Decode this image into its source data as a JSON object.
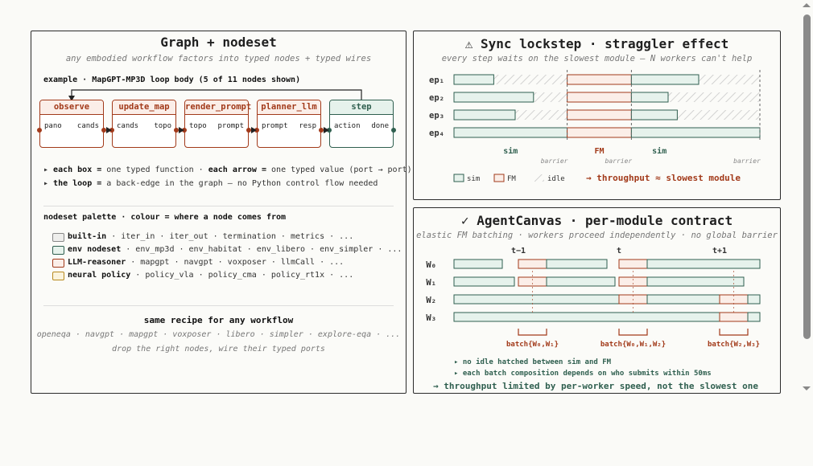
{
  "left": {
    "title": "Graph + nodeset",
    "subtitle": "any embodied workflow factors into typed nodes + typed wires",
    "example_label": "example · MapGPT-MP3D loop body (5 of 11 nodes shown)",
    "nodes": [
      {
        "name": "observe",
        "in": "pano",
        "out": "cands"
      },
      {
        "name": "update_map",
        "in": "cands",
        "out": "topo"
      },
      {
        "name": "render_prompt",
        "in": "topo",
        "out": "prompt"
      },
      {
        "name": "planner_llm",
        "in": "prompt",
        "out": "resp"
      },
      {
        "name": "step",
        "in": "action",
        "out": "done"
      }
    ],
    "bullet1_b1": "each box =",
    "bullet1_t1": "one typed function ·",
    "bullet1_b2": "each arrow =",
    "bullet1_t2": "one typed value (port → port)",
    "bullet2_b": "the loop =",
    "bullet2_t": "a back-edge in the graph — no Python control flow needed",
    "palette_title": "nodeset palette · colour = where a node comes from",
    "palette": [
      {
        "name": "built-in",
        "items": "· iter_in · iter_out · termination · metrics · ...",
        "fill": "#eeeeec",
        "border": "#888888"
      },
      {
        "name": "env nodeset",
        "items": "· env_mp3d · env_habitat · env_libero · env_simpler · ...",
        "fill": "#e6f2ec",
        "border": "#2f5f4f"
      },
      {
        "name": "LLM-reasoner",
        "items": "· mapgpt · navgpt · voxposer · llmCall · ...",
        "fill": "#fbeee8",
        "border": "#a23a1a"
      },
      {
        "name": "neural policy",
        "items": "· policy_vla · policy_cma · policy_rt1x · ...",
        "fill": "#fbf3dc",
        "border": "#b88a20"
      }
    ],
    "recipe_title": "same recipe for any workflow",
    "recipe_list": "openeqa · navgpt · mapgpt · voxposer · libero · simpler · explore-eqa · ...",
    "recipe_foot": "drop the right nodes, wire their typed ports"
  },
  "sync": {
    "title": "⚠ Sync lockstep · straggler effect",
    "subtitle": "every step waits on the slowest module — N workers can't help",
    "rows": [
      "ep₁",
      "ep₂",
      "ep₃",
      "ep₄"
    ],
    "sim1_end": [
      0.13,
      0.26,
      0.2,
      0.37
    ],
    "fm_end": 0.58,
    "sim2_end": [
      0.8,
      0.7,
      0.73,
      1.0
    ],
    "phase_labels": [
      "sim",
      "FM",
      "sim"
    ],
    "barrier_label": "barrier",
    "legend": [
      "sim",
      "FM",
      "idle"
    ],
    "throughput": "→ throughput ≈ slowest module"
  },
  "agent": {
    "title": "✓ AgentCanvas · per-module contract",
    "subtitle": "elastic FM batching · workers proceed independently · no global barrier",
    "ticks": [
      "t−1",
      "t",
      "t+1"
    ],
    "rows": [
      "W₀",
      "W₁",
      "W₂",
      "W₃"
    ],
    "batches": [
      "batch{W₀,W₁}",
      "batch{W₀,W₁,W₂}",
      "batch{W₂,W₃}"
    ],
    "note1": "▸ no idle hatched between sim and FM",
    "note2": "▸ each batch composition depends on who submits within 50ms",
    "throughput": "→ throughput limited by per-worker speed, not the slowest one"
  },
  "colors": {
    "sim_fill": "#e6f2ec",
    "sim_stroke": "#2f5f4f",
    "fm_fill": "#fbeee8",
    "fm_stroke": "#a23a1a",
    "accent": "#a23a1a",
    "green": "#2f5f4f"
  }
}
